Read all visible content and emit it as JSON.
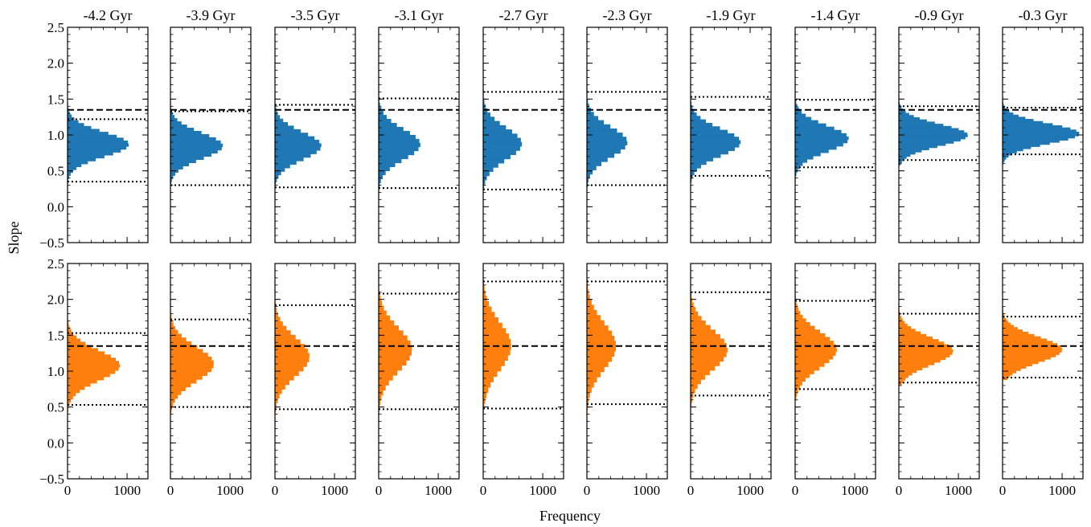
{
  "figure": {
    "ylabel": "Slope",
    "xlabel": "Frequency"
  },
  "chart_data": {
    "type": "histogram-grid",
    "ylim": [
      -0.5,
      2.5
    ],
    "yticks": [
      -0.5,
      0.0,
      0.5,
      1.0,
      1.5,
      2.0,
      2.5
    ],
    "ytick_labels": [
      "−0.5",
      "0.0",
      "0.5",
      "1.0",
      "1.5",
      "2.0",
      "2.5"
    ],
    "xlim": [
      0,
      1350
    ],
    "xticks": [
      0,
      1000
    ],
    "xtick_labels": [
      "0",
      "1000"
    ],
    "reference_line": 1.35,
    "columns": [
      "-4.2 Gyr",
      "-3.9 Gyr",
      "-3.5 Gyr",
      "-3.1 Gyr",
      "-2.7 Gyr",
      "-2.3 Gyr",
      "-1.9 Gyr",
      "-1.4 Gyr",
      "-0.9 Gyr",
      "-0.3 Gyr"
    ],
    "rows": [
      {
        "color": "#1f77b4",
        "panels": [
          {
            "mean": 0.87,
            "sd": 0.17,
            "min": 0.15,
            "max": 1.45,
            "peak": 1030,
            "ci": [
              0.35,
              1.22
            ]
          },
          {
            "mean": 0.85,
            "sd": 0.18,
            "min": 0.08,
            "max": 1.5,
            "peak": 880,
            "ci": [
              0.3,
              1.33
            ]
          },
          {
            "mean": 0.85,
            "sd": 0.19,
            "min": 0.05,
            "max": 1.62,
            "peak": 780,
            "ci": [
              0.27,
              1.42
            ]
          },
          {
            "mean": 0.87,
            "sd": 0.21,
            "min": 0.0,
            "max": 1.78,
            "peak": 700,
            "ci": [
              0.26,
              1.51
            ]
          },
          {
            "mean": 0.88,
            "sd": 0.22,
            "min": 0.02,
            "max": 1.9,
            "peak": 650,
            "ci": [
              0.24,
              1.6
            ]
          },
          {
            "mean": 0.9,
            "sd": 0.21,
            "min": 0.05,
            "max": 1.9,
            "peak": 680,
            "ci": [
              0.3,
              1.6
            ]
          },
          {
            "mean": 0.9,
            "sd": 0.19,
            "min": 0.2,
            "max": 1.75,
            "peak": 840,
            "ci": [
              0.43,
              1.53
            ]
          },
          {
            "mean": 0.95,
            "sd": 0.18,
            "min": 0.3,
            "max": 1.75,
            "peak": 900,
            "ci": [
              0.55,
              1.49
            ]
          },
          {
            "mean": 1.0,
            "sd": 0.15,
            "min": 0.58,
            "max": 1.55,
            "peak": 1160,
            "ci": [
              0.65,
              1.4
            ]
          },
          {
            "mean": 1.02,
            "sd": 0.14,
            "min": 0.6,
            "max": 1.55,
            "peak": 1290,
            "ci": [
              0.73,
              1.38
            ]
          }
        ]
      },
      {
        "color": "#ff7f0e",
        "panels": [
          {
            "mean": 1.08,
            "sd": 0.21,
            "min": 0.3,
            "max": 1.72,
            "peak": 880,
            "ci": [
              0.53,
              1.53
            ]
          },
          {
            "mean": 1.1,
            "sd": 0.24,
            "min": 0.3,
            "max": 2.0,
            "peak": 730,
            "ci": [
              0.5,
              1.72
            ]
          },
          {
            "mean": 1.2,
            "sd": 0.27,
            "min": 0.18,
            "max": 2.2,
            "peak": 580,
            "ci": [
              0.47,
              1.92
            ]
          },
          {
            "mean": 1.3,
            "sd": 0.3,
            "min": 0.18,
            "max": 2.4,
            "peak": 560,
            "ci": [
              0.47,
              2.08
            ]
          },
          {
            "mean": 1.35,
            "sd": 0.33,
            "min": 0.1,
            "max": 2.5,
            "peak": 470,
            "ci": [
              0.48,
              2.25
            ]
          },
          {
            "mean": 1.35,
            "sd": 0.32,
            "min": 0.2,
            "max": 2.5,
            "peak": 490,
            "ci": [
              0.54,
              2.25
            ]
          },
          {
            "mean": 1.3,
            "sd": 0.28,
            "min": 0.38,
            "max": 2.4,
            "peak": 620,
            "ci": [
              0.66,
              2.1
            ]
          },
          {
            "mean": 1.3,
            "sd": 0.25,
            "min": 0.6,
            "max": 2.25,
            "peak": 700,
            "ci": [
              0.75,
              1.98
            ]
          },
          {
            "mean": 1.28,
            "sd": 0.19,
            "min": 0.8,
            "max": 1.95,
            "peak": 910,
            "ci": [
              0.84,
              1.8
            ]
          },
          {
            "mean": 1.3,
            "sd": 0.18,
            "min": 0.88,
            "max": 1.9,
            "peak": 1000,
            "ci": [
              0.91,
              1.76
            ]
          }
        ]
      }
    ]
  }
}
